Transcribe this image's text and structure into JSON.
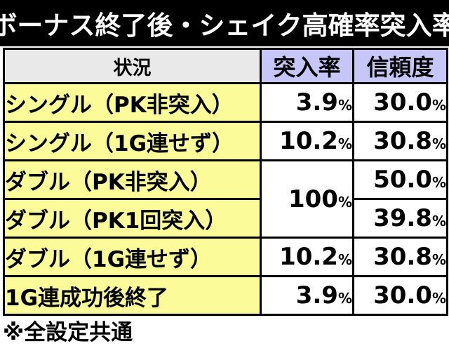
{
  "title": "ボーナス終了後・シェイク高確率突入率",
  "header": {
    "label": "状況",
    "col1": "突入率",
    "col2": "信頼度"
  },
  "rows": [
    {
      "label": "シングル（PK非突入）",
      "rate": "3.9",
      "rate_unit": "%",
      "trust": "30.0",
      "trust_unit": "%"
    },
    {
      "label": "シングル（1G連せず）",
      "rate": "10.2",
      "rate_unit": "%",
      "trust": "30.8",
      "trust_unit": "%"
    },
    {
      "label": "ダブル（PK非突入）",
      "rate": "100",
      "rate_unit": "%",
      "trust": "50.0",
      "trust_unit": "%"
    },
    {
      "label": "ダブル（PK1回突入）",
      "trust": "39.8",
      "trust_unit": "%"
    },
    {
      "label": "ダブル（1G連せず）",
      "rate": "10.2",
      "rate_unit": "%",
      "trust": "30.8",
      "trust_unit": "%"
    },
    {
      "label": "1G連成功後終了",
      "rate": "3.9",
      "rate_unit": "%",
      "trust": "30.0",
      "trust_unit": "%"
    }
  ],
  "footnote": "※全設定共通"
}
